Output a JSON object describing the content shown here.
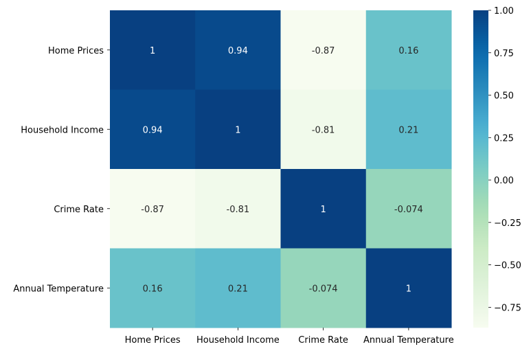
{
  "chart_data": {
    "type": "heatmap",
    "title": "",
    "xlabel": "",
    "ylabel": "",
    "x_categories": [
      "Home Prices",
      "Household Income",
      "Crime Rate",
      "Annual Temperature"
    ],
    "y_categories": [
      "Home Prices",
      "Household Income",
      "Crime Rate",
      "Annual Temperature"
    ],
    "values": [
      [
        1,
        0.94,
        -0.87,
        0.16
      ],
      [
        0.94,
        1,
        -0.81,
        0.21
      ],
      [
        -0.87,
        -0.81,
        1,
        -0.074
      ],
      [
        0.16,
        0.21,
        -0.074,
        1
      ]
    ],
    "annotations": [
      [
        "1",
        "0.94",
        "-0.87",
        "0.16"
      ],
      [
        "0.94",
        "1",
        "-0.81",
        "0.21"
      ],
      [
        "-0.87",
        "-0.81",
        "1",
        "-0.074"
      ],
      [
        "0.16",
        "0.21",
        "-0.074",
        "1"
      ]
    ],
    "colormap": "YlGnBu",
    "colorbar": {
      "range": [
        -0.87,
        1.0
      ],
      "ticks": [
        1.0,
        0.75,
        0.5,
        0.25,
        0.0,
        -0.25,
        -0.5,
        -0.75
      ],
      "tick_labels": [
        "1.00",
        "0.75",
        "0.50",
        "0.25",
        "0.00",
        "−0.25",
        "−0.50",
        "−0.75"
      ],
      "placement": "right"
    },
    "grid": false
  }
}
